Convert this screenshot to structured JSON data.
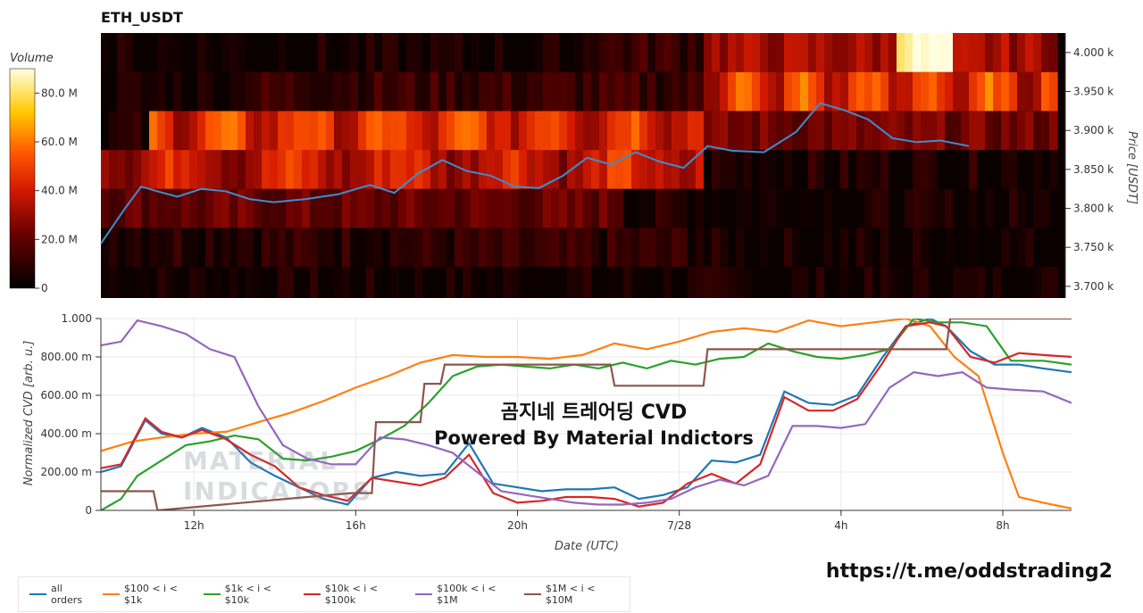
{
  "page": {
    "title": "ETH_USDT",
    "volume_label": "Volume",
    "overlay_line1": "곰지네 트레어딩 CVD",
    "overlay_line2": "Powered By Material Indictors",
    "watermark_line1": "MATERIAL",
    "watermark_line2": "INDICATORS",
    "link": "https://t.me/oddstrading2"
  },
  "colors": {
    "all_orders": "#1f77b4",
    "s100_1k": "#ff7f0e",
    "s1k_10k": "#2ca02c",
    "s10k_100k": "#d62728",
    "s100k_1m": "#9467bd",
    "s1m_10m": "#8c564b",
    "price_line": "#3a8fd0"
  },
  "chart_data": [
    {
      "type": "heatmap",
      "title": "ETH_USDT",
      "ylabel": "Price [USDT]",
      "ylim": [
        3685,
        4025
      ],
      "y_ticks": [
        3700,
        3750,
        3800,
        3850,
        3900,
        3950,
        4000
      ],
      "y_tick_labels": [
        "3.700 k",
        "3.750 k",
        "3.800 k",
        "3.850 k",
        "3.900 k",
        "3.950 k",
        "4.000 k"
      ],
      "colorbar": {
        "label": "Volume",
        "range": [
          0,
          90
        ],
        "ticks": [
          0,
          20,
          40,
          60,
          80
        ],
        "tick_labels": [
          "0",
          "20.0 M",
          "40.0 M",
          "60.0 M",
          "80.0 M"
        ]
      },
      "price_series": {
        "name": "Price",
        "x": [
          9.7,
          10.3,
          10.7,
          11.1,
          11.6,
          12.2,
          12.8,
          13.4,
          14,
          14.8,
          15.6,
          16.4,
          17,
          17.6,
          18.2,
          18.8,
          19.4,
          20,
          20.6,
          21.2,
          21.8,
          22.4,
          23,
          23.6,
          24.2,
          24.8,
          25.4,
          26.2,
          27,
          27.6,
          28.2,
          28.8,
          29.4,
          30,
          30.6,
          31.3
        ],
        "y": [
          3755,
          3800,
          3828,
          3822,
          3815,
          3825,
          3822,
          3812,
          3808,
          3812,
          3818,
          3830,
          3820,
          3845,
          3862,
          3848,
          3842,
          3828,
          3826,
          3842,
          3865,
          3856,
          3872,
          3860,
          3852,
          3880,
          3874,
          3872,
          3898,
          3935,
          3926,
          3914,
          3890,
          3885,
          3887,
          3880
        ]
      }
    },
    {
      "type": "line",
      "xlabel": "Date (UTC)",
      "ylabel": "Normalized CVD [arb. u.]",
      "ylim": [
        0,
        1000
      ],
      "y_ticks": [
        0,
        200,
        400,
        600,
        800,
        1000
      ],
      "y_tick_labels": [
        "0",
        "200.00 m",
        "400.00 m",
        "600.00 m",
        "800.00 m",
        "1.000"
      ],
      "x_ticks": [
        12,
        16,
        20,
        24,
        28,
        32
      ],
      "x_tick_labels": [
        "12h",
        "16h",
        "20h",
        "7/28",
        "4h",
        "8h"
      ],
      "xlim": [
        9.7,
        33.7
      ],
      "series": [
        {
          "name": "all orders",
          "color": "#1f77b4",
          "x": [
            9.7,
            10.2,
            10.8,
            11.2,
            11.7,
            12.2,
            12.8,
            13.4,
            14,
            14.6,
            15.2,
            15.8,
            16.4,
            17,
            17.6,
            18.2,
            18.8,
            19.4,
            20,
            20.6,
            21.2,
            21.8,
            22.4,
            23,
            23.6,
            24.2,
            24.8,
            25.4,
            26,
            26.6,
            27.2,
            27.8,
            28.4,
            29,
            29.6,
            30.2,
            30.6,
            31.2,
            31.8,
            32.4,
            33,
            33.7
          ],
          "y": [
            200,
            230,
            470,
            400,
            380,
            430,
            380,
            250,
            180,
            120,
            60,
            30,
            170,
            200,
            180,
            190,
            350,
            140,
            120,
            100,
            110,
            110,
            120,
            60,
            80,
            120,
            260,
            250,
            290,
            620,
            560,
            550,
            600,
            790,
            960,
            1000,
            960,
            830,
            760,
            760,
            740,
            720
          ]
        },
        {
          "name": "$100 < i < $1k",
          "color": "#ff7f0e",
          "x": [
            9.7,
            10.5,
            11.2,
            12,
            12.8,
            13.6,
            14.4,
            15.2,
            16,
            16.8,
            17.6,
            18.4,
            19.2,
            20,
            20.8,
            21.6,
            22.4,
            23.2,
            24,
            24.8,
            25.6,
            26.4,
            27.2,
            28,
            28.8,
            29.6,
            30.2,
            30.8,
            31.4,
            32,
            32.4,
            33,
            33.7
          ],
          "y": [
            310,
            360,
            380,
            400,
            410,
            460,
            510,
            570,
            640,
            700,
            770,
            810,
            800,
            800,
            790,
            810,
            870,
            840,
            880,
            930,
            950,
            930,
            990,
            960,
            980,
            1000,
            960,
            800,
            700,
            300,
            70,
            40,
            10
          ]
        },
        {
          "name": "$1k < i < $10k",
          "color": "#2ca02c",
          "x": [
            9.7,
            10.2,
            10.6,
            11.2,
            11.8,
            12.4,
            13,
            13.6,
            14.2,
            14.8,
            15.4,
            16,
            16.6,
            17.2,
            17.8,
            18.4,
            19,
            19.6,
            20.2,
            20.8,
            21.4,
            22,
            22.6,
            23.2,
            23.8,
            24.4,
            25,
            25.6,
            26.2,
            26.8,
            27.4,
            28,
            28.6,
            29.2,
            29.8,
            30.4,
            31,
            31.6,
            32.2,
            33,
            33.7
          ],
          "y": [
            0,
            60,
            180,
            260,
            340,
            360,
            390,
            370,
            270,
            260,
            280,
            310,
            370,
            440,
            560,
            700,
            750,
            760,
            750,
            740,
            760,
            740,
            770,
            740,
            780,
            760,
            790,
            800,
            870,
            830,
            800,
            790,
            810,
            840,
            1000,
            980,
            980,
            960,
            780,
            780,
            760
          ]
        },
        {
          "name": "$10k < i < $100k",
          "color": "#d62728",
          "x": [
            9.7,
            10.2,
            10.8,
            11.2,
            11.7,
            12.2,
            12.8,
            13.4,
            14,
            14.6,
            15.2,
            15.8,
            16.4,
            17,
            17.6,
            18.2,
            18.8,
            19.4,
            20,
            20.6,
            21.2,
            21.8,
            22.4,
            23,
            23.6,
            24.2,
            24.8,
            25.4,
            26,
            26.6,
            27.2,
            27.8,
            28.4,
            29,
            29.6,
            30.2,
            30.6,
            31.2,
            31.8,
            32.4,
            33,
            33.7
          ],
          "y": [
            220,
            240,
            480,
            410,
            380,
            420,
            370,
            290,
            230,
            120,
            80,
            50,
            170,
            150,
            130,
            170,
            290,
            90,
            40,
            50,
            70,
            70,
            60,
            20,
            40,
            140,
            190,
            140,
            240,
            590,
            520,
            520,
            580,
            760,
            960,
            980,
            960,
            800,
            770,
            820,
            810,
            800
          ]
        },
        {
          "name": "$100k < i < $1M",
          "color": "#9467bd",
          "x": [
            9.7,
            10.2,
            10.6,
            11.2,
            11.8,
            12.4,
            13,
            13.6,
            14.2,
            14.8,
            15.4,
            16,
            16.6,
            17.2,
            17.8,
            18.4,
            19,
            19.6,
            20.2,
            20.8,
            21.4,
            22,
            22.6,
            23.2,
            23.8,
            24.4,
            25,
            25.6,
            26.2,
            26.8,
            27.4,
            28,
            28.6,
            29.2,
            29.8,
            30.4,
            31,
            31.6,
            32.2,
            33,
            33.7
          ],
          "y": [
            860,
            880,
            990,
            960,
            920,
            840,
            800,
            540,
            340,
            270,
            240,
            240,
            380,
            370,
            340,
            300,
            200,
            100,
            80,
            60,
            40,
            30,
            30,
            40,
            60,
            120,
            160,
            130,
            180,
            440,
            440,
            430,
            450,
            640,
            720,
            700,
            720,
            640,
            630,
            620,
            560
          ]
        },
        {
          "name": "$1M < i < $10M",
          "color": "#8c564b",
          "x": [
            9.7,
            11,
            11.1,
            15.9,
            16,
            16.4,
            16.5,
            17.6,
            17.7,
            18.1,
            18.2,
            22.3,
            22.4,
            23.5,
            23.6,
            24.6,
            24.7,
            30.6,
            30.7,
            31.2,
            31.3,
            33.7
          ],
          "y": [
            100,
            100,
            0,
            90,
            90,
            90,
            460,
            460,
            660,
            660,
            760,
            760,
            650,
            650,
            650,
            650,
            840,
            840,
            1000,
            1000,
            1000,
            1000
          ]
        }
      ]
    }
  ]
}
